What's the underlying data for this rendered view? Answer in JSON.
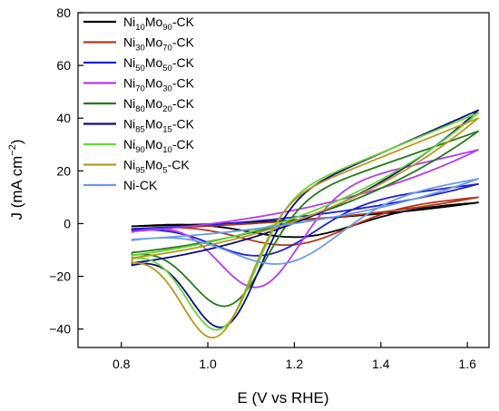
{
  "chart_data": {
    "type": "line",
    "xlabel": "E (V vs RHE)",
    "ylabel_parts": [
      "J (mA cm",
      "−2",
      ")"
    ],
    "xlim": [
      0.7,
      1.65
    ],
    "ylim": [
      -47,
      80
    ],
    "xticks": [
      0.8,
      1.0,
      1.2,
      1.4,
      1.6
    ],
    "yticks": [
      -40,
      -20,
      0,
      20,
      40,
      60,
      80
    ],
    "xtick_labels": [
      "0.8",
      "1.0",
      "1.2",
      "1.4",
      "1.6"
    ],
    "ytick_labels": [
      "−40",
      "−20",
      "0",
      "20",
      "40",
      "60",
      "80"
    ],
    "legend_position": "top-left",
    "grid": false,
    "series": [
      {
        "label_parts": [
          "Ni",
          "10",
          "Mo",
          "90",
          "-CK"
        ],
        "color": "#000000",
        "peak_c": [
          1.22,
          -5
        ],
        "j_end": 8,
        "j_start": -1,
        "kappa": 1.6,
        "ox_scale": 1.0
      },
      {
        "label_parts": [
          "Ni",
          "30",
          "Mo",
          "70",
          "-CK"
        ],
        "color": "#b5361c",
        "peak_c": [
          1.2,
          -8
        ],
        "j_end": 10,
        "j_start": -2,
        "kappa": 1.6,
        "ox_scale": 1.0
      },
      {
        "label_parts": [
          "Ni",
          "50",
          "Mo",
          "50",
          "-CK"
        ],
        "color": "#1f1fd6",
        "peak_c": [
          1.13,
          -12
        ],
        "j_end": 15,
        "j_start": -2,
        "kappa": 1.5,
        "ox_scale": 1.0
      },
      {
        "label_parts": [
          "Ni",
          "70",
          "Mo",
          "30",
          "-CK"
        ],
        "color": "#b43cf0",
        "peak_c": [
          1.12,
          -24
        ],
        "j_end": 28,
        "j_start": -3,
        "kappa": 1.2,
        "ox_scale": 1.0
      },
      {
        "label_parts": [
          "Ni",
          "80",
          "Mo",
          "20",
          "-CK"
        ],
        "color": "#237a1a",
        "peak_c": [
          1.05,
          -31
        ],
        "j_end": 35,
        "j_start": -11,
        "kappa": 1.1,
        "ox_scale": 1.0
      },
      {
        "label_parts": [
          "Ni",
          "85",
          "Mo",
          "15",
          "-CK"
        ],
        "color": "#0c0c80",
        "peak_c": [
          1.04,
          -39
        ],
        "j_end": 43,
        "j_start": -15,
        "kappa": 1.0,
        "ox_scale": 1.0
      },
      {
        "label_parts": [
          "Ni",
          "90",
          "Mo",
          "10",
          "-CK"
        ],
        "color": "#66d636",
        "peak_c": [
          1.03,
          -40
        ],
        "j_end": 42,
        "j_start": -12,
        "kappa": 1.0,
        "ox_scale": 1.0
      },
      {
        "label_parts": [
          "Ni",
          "95",
          "Mo",
          "5",
          "-CK"
        ],
        "color": "#b69a1a",
        "peak_c": [
          1.02,
          -43
        ],
        "j_end": 40,
        "j_start": -13,
        "kappa": 1.0,
        "ox_scale": 1.0
      },
      {
        "label_parts": [
          "Ni-CK"
        ],
        "color": "#6a9be8",
        "peak_c": [
          1.18,
          -15
        ],
        "j_end": 17,
        "j_start": -6,
        "kappa": 1.6,
        "ox_scale": 1.0
      }
    ]
  }
}
